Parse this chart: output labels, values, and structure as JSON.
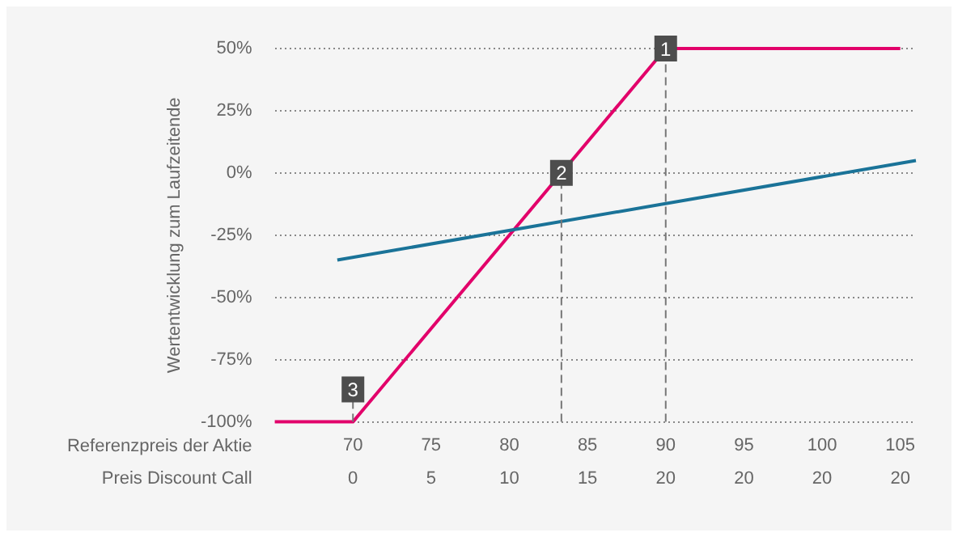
{
  "chart_data": {
    "type": "line",
    "ylabel": "Wertentwicklung zum Laufzeitende",
    "xlabel": "Referenzpreis der Aktie",
    "xlim": [
      65,
      106
    ],
    "xticks": [
      70,
      75,
      80,
      85,
      90,
      95,
      100,
      105
    ],
    "ylim": [
      -100,
      50
    ],
    "yticks": [
      {
        "value": -100,
        "label": "-100%"
      },
      {
        "value": -75,
        "label": "-75%"
      },
      {
        "value": -50,
        "label": "-50%"
      },
      {
        "value": -25,
        "label": "-25%"
      },
      {
        "value": 0,
        "label": "0%"
      },
      {
        "value": 25,
        "label": "25%"
      },
      {
        "value": 50,
        "label": "50%"
      }
    ],
    "series": [
      {
        "color": "#1a7398",
        "x": [
          69,
          106
        ],
        "values": [
          -35,
          5
        ]
      },
      {
        "color": "#e2006a",
        "x": [
          65,
          70,
          90,
          105
        ],
        "values": [
          -100,
          -100,
          50,
          50
        ]
      }
    ],
    "ref_lines": [
      {
        "axis": "x",
        "value": 90,
        "line_style": "dashed",
        "color": "#777777"
      },
      {
        "axis": "x",
        "value": 83.33,
        "line_style": "dashed",
        "color": "#777777"
      },
      {
        "axis": "x",
        "value": 70,
        "line_style": "dashed",
        "color": "#777777"
      }
    ],
    "annotations": [
      {
        "text": "1",
        "x": 90,
        "y": 50
      },
      {
        "text": "2",
        "x": 83.33,
        "y": 0
      },
      {
        "text": "3",
        "x": 70,
        "y": -100
      },
      "Preis Discount Call",
      "0",
      "5",
      "10",
      "15",
      "20",
      "20",
      "20",
      "20"
    ],
    "grid": "y",
    "legend": false,
    "marker": "none",
    "line_style": "solid"
  }
}
